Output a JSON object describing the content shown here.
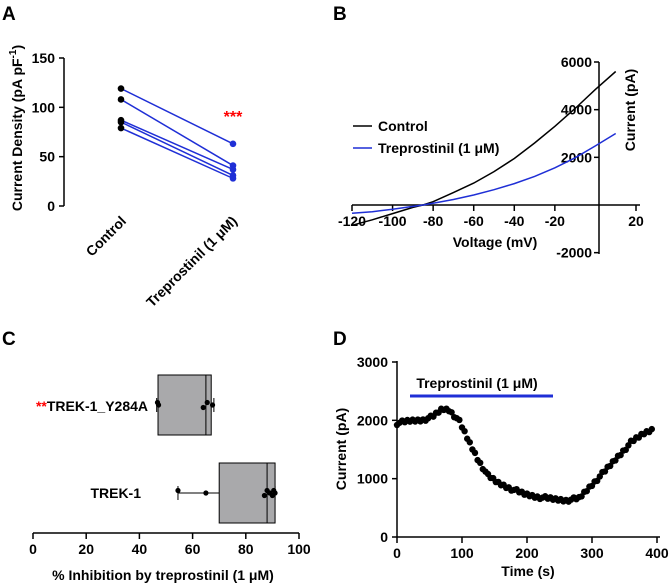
{
  "chart_data": [
    {
      "panel": "A",
      "type": "scatter",
      "ylabel": "Current Density (pA pF",
      "ylabel_sup": "-1",
      "ylabel_end": ")",
      "categories": [
        "Control",
        "Treprostinil (1 μM)"
      ],
      "ylim": [
        0,
        150
      ],
      "yticks": [
        "0",
        "50",
        "100",
        "150"
      ],
      "pairs": [
        [
          119,
          63
        ],
        [
          108,
          41
        ],
        [
          87,
          37
        ],
        [
          85,
          31
        ],
        [
          79,
          28
        ]
      ],
      "significance": "***",
      "colors": {
        "control": "#000000",
        "drug": "#1f2fd6",
        "line": "#1f2fd6",
        "sig": "#ff0000"
      }
    },
    {
      "panel": "B",
      "type": "line",
      "xlabel": "Voltage (mV)",
      "ylabel": "Current (pA)",
      "xlim": [
        -120,
        20
      ],
      "ylim": [
        -2000,
        6000
      ],
      "xticks": [
        "-120",
        "-100",
        "-80",
        "-60",
        "-40",
        "-20",
        "20"
      ],
      "xtick_values": [
        -120,
        -100,
        -80,
        -60,
        -40,
        -20,
        20
      ],
      "yticks": [
        "-2000",
        "2000",
        "4000",
        "6000"
      ],
      "ytick_values": [
        -2000,
        2000,
        4000,
        6000
      ],
      "legend": [
        "Control",
        "Treprostinil (1 μM)"
      ],
      "series": [
        {
          "name": "Control",
          "color": "#000000",
          "x": [
            -120,
            -110,
            -100,
            -90,
            -85,
            -80,
            -70,
            -60,
            -50,
            -40,
            -30,
            -20,
            -10,
            0,
            10
          ],
          "y": [
            -850,
            -620,
            -360,
            -100,
            0,
            140,
            520,
            920,
            1400,
            1950,
            2600,
            3300,
            4050,
            4850,
            5600
          ]
        },
        {
          "name": "Treprostinil (1 μM)",
          "color": "#1f2fd6",
          "x": [
            -120,
            -110,
            -100,
            -90,
            -85,
            -80,
            -70,
            -60,
            -50,
            -40,
            -30,
            -20,
            -10,
            0,
            10
          ],
          "y": [
            -350,
            -280,
            -180,
            -60,
            0,
            70,
            230,
            420,
            640,
            900,
            1200,
            1560,
            1980,
            2480,
            3000
          ]
        }
      ]
    },
    {
      "panel": "C",
      "type": "box",
      "xlabel": "% Inhibition by treprostinil (1 μM)",
      "xlim": [
        0,
        100
      ],
      "xticks": [
        "0",
        "20",
        "40",
        "60",
        "80",
        "100"
      ],
      "categories": [
        "TREK-1_Y284A",
        "TREK-1"
      ],
      "category_marks": [
        "**",
        ""
      ],
      "boxes": [
        {
          "name": "TREK-1_Y284A",
          "min": 46.5,
          "q1": 47,
          "median": 65,
          "q3": 67,
          "max": 68,
          "points": [
            46.8,
            47.2,
            64,
            65.5,
            67.5
          ]
        },
        {
          "name": "TREK-1",
          "min": 54.5,
          "q1": 70,
          "median": 88,
          "q3": 91,
          "max": 91,
          "points": [
            54.5,
            65,
            87,
            88,
            89,
            90,
            90.5,
            91
          ]
        }
      ],
      "colors": {
        "box": "#a9a9ab",
        "sig": "#ff0000"
      }
    },
    {
      "panel": "D",
      "type": "scatter",
      "xlabel": "Time (s)",
      "ylabel": "Current (pA)",
      "xlim": [
        0,
        400
      ],
      "ylim": [
        0,
        3000
      ],
      "xticks": [
        "0",
        "100",
        "200",
        "300",
        "400"
      ],
      "yticks": [
        "0",
        "1000",
        "2000",
        "3000"
      ],
      "annotation": "Treprostinil (1 μM)",
      "bar_range": [
        20,
        240
      ],
      "bar_color": "#1f2fd6",
      "keypoints": [
        [
          0,
          1950
        ],
        [
          20,
          1990
        ],
        [
          40,
          2010
        ],
        [
          55,
          2060
        ],
        [
          70,
          2200
        ],
        [
          80,
          2180
        ],
        [
          95,
          2000
        ],
        [
          110,
          1650
        ],
        [
          125,
          1320
        ],
        [
          140,
          1050
        ],
        [
          155,
          930
        ],
        [
          175,
          830
        ],
        [
          195,
          740
        ],
        [
          215,
          690
        ],
        [
          240,
          650
        ],
        [
          260,
          630
        ],
        [
          280,
          660
        ],
        [
          300,
          900
        ],
        [
          320,
          1130
        ],
        [
          340,
          1380
        ],
        [
          360,
          1620
        ],
        [
          380,
          1780
        ],
        [
          395,
          1860
        ]
      ]
    }
  ],
  "panel_labels": [
    "A",
    "B",
    "C",
    "D"
  ]
}
